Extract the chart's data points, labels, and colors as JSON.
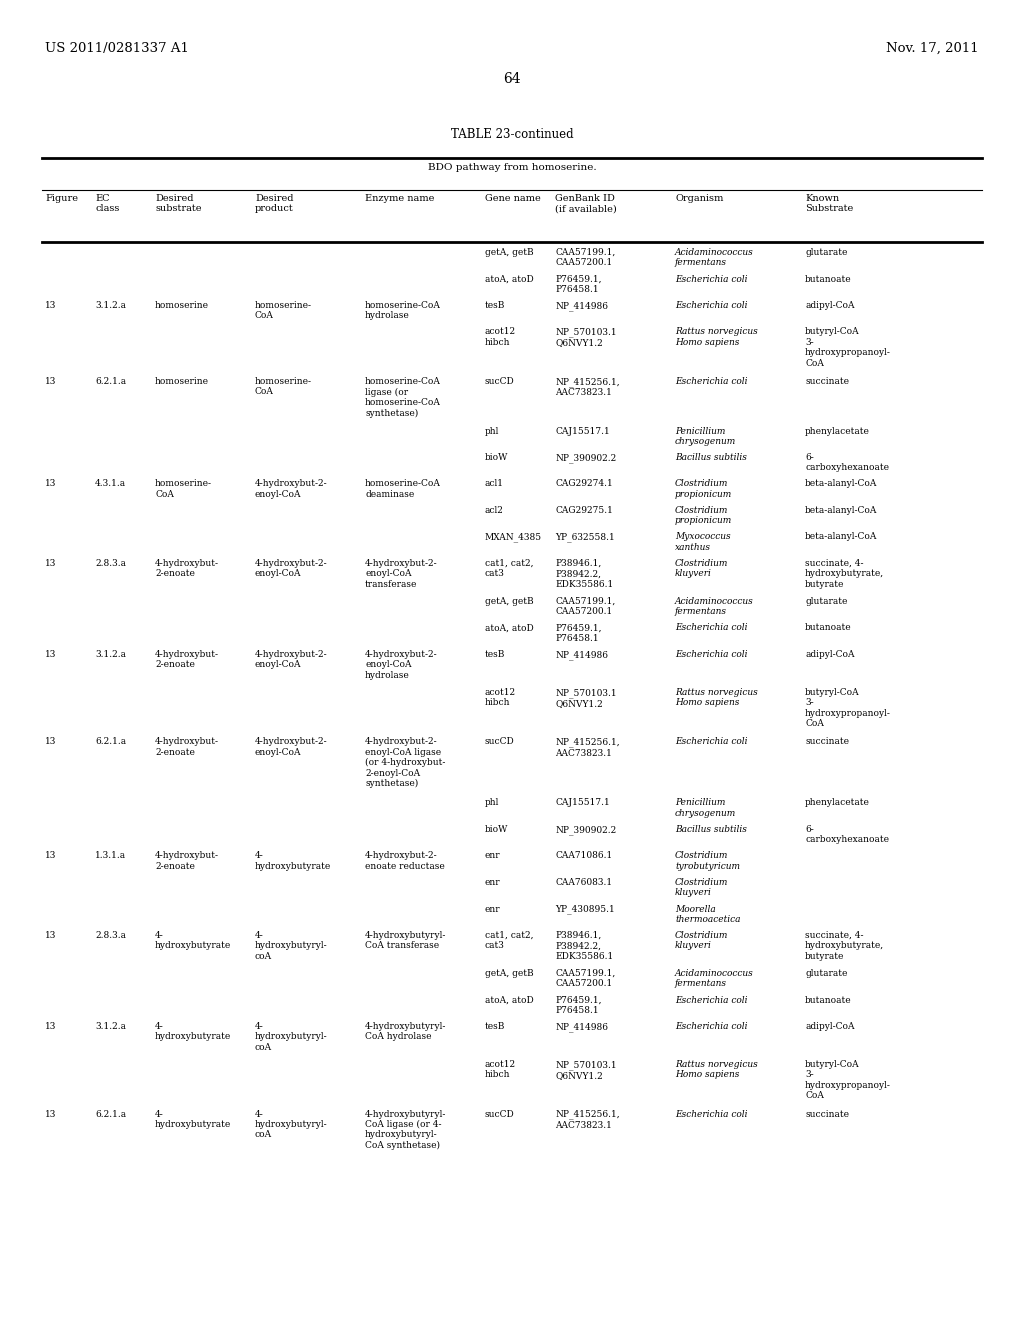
{
  "header_left": "US 2011/0281337 A1",
  "header_right": "Nov. 17, 2011",
  "page_number": "64",
  "table_title": "TABLE 23-continued",
  "table_subtitle": "BDO pathway from homoserine.",
  "col_x_inch": [
    0.45,
    0.95,
    1.55,
    2.55,
    3.65,
    4.85,
    5.55,
    6.75,
    8.05
  ],
  "col_keys": [
    "fig",
    "ec",
    "sub",
    "prod",
    "enz",
    "gene",
    "genbank",
    "org",
    "known"
  ],
  "col_headers": [
    "Figure",
    "EC\nclass",
    "Desired\nsubstrate",
    "Desired\nproduct",
    "Enzyme name",
    "Gene name",
    "GenBank ID\n(if available)",
    "Organism",
    "Known\nSubstrate"
  ],
  "background_color": "#ffffff",
  "text_color": "#000000",
  "rows": [
    {
      "fig": "",
      "ec": "",
      "sub": "",
      "prod": "",
      "enz": "",
      "gene": "getA, getB",
      "genbank": "CAA57199.1,\nCAA57200.1",
      "org": "Acidaminococcus\nfermentans",
      "known": "glutarate"
    },
    {
      "fig": "",
      "ec": "",
      "sub": "",
      "prod": "",
      "enz": "",
      "gene": "atoA, atoD",
      "genbank": "P76459.1,\nP76458.1",
      "org": "Escherichia coli",
      "known": "butanoate"
    },
    {
      "fig": "13",
      "ec": "3.1.2.a",
      "sub": "homoserine",
      "prod": "homoserine-\nCoA",
      "enz": "homoserine-CoA\nhydrolase",
      "gene": "tesB",
      "genbank": "NP_414986",
      "org": "Escherichia coli",
      "known": "adipyl-CoA"
    },
    {
      "fig": "",
      "ec": "",
      "sub": "",
      "prod": "",
      "enz": "",
      "gene": "acot12\nhibch",
      "genbank": "NP_570103.1\nQ6NVY1.2",
      "org": "Rattus norvegicus\nHomo sapiens",
      "known": "butyryl-CoA\n3-\nhydroxypropanoyl-\nCoA"
    },
    {
      "fig": "13",
      "ec": "6.2.1.a",
      "sub": "homoserine",
      "prod": "homoserine-\nCoA",
      "enz": "homoserine-CoA\nligase (or\nhomoserine-CoA\nsynthetase)",
      "gene": "sucCD",
      "genbank": "NP_415256.1,\nAAC73823.1",
      "org": "Escherichia coli",
      "known": "succinate"
    },
    {
      "fig": "",
      "ec": "",
      "sub": "",
      "prod": "",
      "enz": "",
      "gene": "phl",
      "genbank": "CAJ15517.1",
      "org": "Penicillium\nchrysogenum",
      "known": "phenylacetate"
    },
    {
      "fig": "",
      "ec": "",
      "sub": "",
      "prod": "",
      "enz": "",
      "gene": "bioW",
      "genbank": "NP_390902.2",
      "org": "Bacillus subtilis",
      "known": "6-\ncarboxyhexanoate"
    },
    {
      "fig": "13",
      "ec": "4.3.1.a",
      "sub": "homoserine-\nCoA",
      "prod": "4-hydroxybut-2-\nenoyl-CoA",
      "enz": "homoserine-CoA\ndeaminase",
      "gene": "acl1",
      "genbank": "CAG29274.1",
      "org": "Clostridium\npropionicum",
      "known": "beta-alanyl-CoA"
    },
    {
      "fig": "",
      "ec": "",
      "sub": "",
      "prod": "",
      "enz": "",
      "gene": "acl2",
      "genbank": "CAG29275.1",
      "org": "Clostridium\npropionicum",
      "known": "beta-alanyl-CoA"
    },
    {
      "fig": "",
      "ec": "",
      "sub": "",
      "prod": "",
      "enz": "",
      "gene": "MXAN_4385",
      "genbank": "YP_632558.1",
      "org": "Myxococcus\nxanthus",
      "known": "beta-alanyl-CoA"
    },
    {
      "fig": "13",
      "ec": "2.8.3.a",
      "sub": "4-hydroxybut-\n2-enoate",
      "prod": "4-hydroxybut-2-\nenoyl-CoA",
      "enz": "4-hydroxybut-2-\nenoyl-CoA\ntransferase",
      "gene": "cat1, cat2,\ncat3",
      "genbank": "P38946.1,\nP38942.2,\nEDK35586.1",
      "org": "Clostridium\nkluyveri",
      "known": "succinate, 4-\nhydroxybutyrate,\nbutyrate"
    },
    {
      "fig": "",
      "ec": "",
      "sub": "",
      "prod": "",
      "enz": "",
      "gene": "getA, getB",
      "genbank": "CAA57199.1,\nCAA57200.1",
      "org": "Acidaminococcus\nfermentans",
      "known": "glutarate"
    },
    {
      "fig": "",
      "ec": "",
      "sub": "",
      "prod": "",
      "enz": "",
      "gene": "atoA, atoD",
      "genbank": "P76459.1,\nP76458.1",
      "org": "Escherichia coli",
      "known": "butanoate"
    },
    {
      "fig": "13",
      "ec": "3.1.2.a",
      "sub": "4-hydroxybut-\n2-enoate",
      "prod": "4-hydroxybut-2-\nenoyl-CoA",
      "enz": "4-hydroxybut-2-\nenoyl-CoA\nhydrolase",
      "gene": "tesB",
      "genbank": "NP_414986",
      "org": "Escherichia coli",
      "known": "adipyl-CoA"
    },
    {
      "fig": "",
      "ec": "",
      "sub": "",
      "prod": "",
      "enz": "",
      "gene": "acot12\nhibch",
      "genbank": "NP_570103.1\nQ6NVY1.2",
      "org": "Rattus norvegicus\nHomo sapiens",
      "known": "butyryl-CoA\n3-\nhydroxypropanoyl-\nCoA"
    },
    {
      "fig": "13",
      "ec": "6.2.1.a",
      "sub": "4-hydroxybut-\n2-enoate",
      "prod": "4-hydroxybut-2-\nenoyl-CoA",
      "enz": "4-hydroxybut-2-\nenoyl-CoA ligase\n(or 4-hydroxybut-\n2-enoyl-CoA\nsynthetase)",
      "gene": "sucCD",
      "genbank": "NP_415256.1,\nAAC73823.1",
      "org": "Escherichia coli",
      "known": "succinate"
    },
    {
      "fig": "",
      "ec": "",
      "sub": "",
      "prod": "",
      "enz": "",
      "gene": "phl",
      "genbank": "CAJ15517.1",
      "org": "Penicillium\nchrysogenum",
      "known": "phenylacetate"
    },
    {
      "fig": "",
      "ec": "",
      "sub": "",
      "prod": "",
      "enz": "",
      "gene": "bioW",
      "genbank": "NP_390902.2",
      "org": "Bacillus subtilis",
      "known": "6-\ncarboxyhexanoate"
    },
    {
      "fig": "13",
      "ec": "1.3.1.a",
      "sub": "4-hydroxybut-\n2-enoate",
      "prod": "4-\nhydroxybutyrate",
      "enz": "4-hydroxybut-2-\nenoate reductase",
      "gene": "enr",
      "genbank": "CAA71086.1",
      "org": "Clostridium\ntyrobutyricum",
      "known": ""
    },
    {
      "fig": "",
      "ec": "",
      "sub": "",
      "prod": "",
      "enz": "",
      "gene": "enr",
      "genbank": "CAA76083.1",
      "org": "Clostridium\nkluyveri",
      "known": ""
    },
    {
      "fig": "",
      "ec": "",
      "sub": "",
      "prod": "",
      "enz": "",
      "gene": "enr",
      "genbank": "YP_430895.1",
      "org": "Moorella\nthermoacetica",
      "known": ""
    },
    {
      "fig": "13",
      "ec": "2.8.3.a",
      "sub": "4-\nhydroxybutyrate",
      "prod": "4-\nhydroxybutyryl-\ncoA",
      "enz": "4-hydroxybutyryl-\nCoA transferase",
      "gene": "cat1, cat2,\ncat3",
      "genbank": "P38946.1,\nP38942.2,\nEDK35586.1",
      "org": "Clostridium\nkluyveri",
      "known": "succinate, 4-\nhydroxybutyrate,\nbutyrate"
    },
    {
      "fig": "",
      "ec": "",
      "sub": "",
      "prod": "",
      "enz": "",
      "gene": "getA, getB",
      "genbank": "CAA57199.1,\nCAA57200.1",
      "org": "Acidaminococcus\nfermentans",
      "known": "glutarate"
    },
    {
      "fig": "",
      "ec": "",
      "sub": "",
      "prod": "",
      "enz": "",
      "gene": "atoA, atoD",
      "genbank": "P76459.1,\nP76458.1",
      "org": "Escherichia coli",
      "known": "butanoate"
    },
    {
      "fig": "13",
      "ec": "3.1.2.a",
      "sub": "4-\nhydroxybutyrate",
      "prod": "4-\nhydroxybutyryl-\ncoA",
      "enz": "4-hydroxybutyryl-\nCoA hydrolase",
      "gene": "tesB",
      "genbank": "NP_414986",
      "org": "Escherichia coli",
      "known": "adipyl-CoA"
    },
    {
      "fig": "",
      "ec": "",
      "sub": "",
      "prod": "",
      "enz": "",
      "gene": "acot12\nhibch",
      "genbank": "NP_570103.1\nQ6NVY1.2",
      "org": "Rattus norvegicus\nHomo sapiens",
      "known": "butyryl-CoA\n3-\nhydroxypropanoyl-\nCoA"
    },
    {
      "fig": "13",
      "ec": "6.2.1.a",
      "sub": "4-\nhydroxybutyrate",
      "prod": "4-\nhydroxybutyryl-\ncoA",
      "enz": "4-hydroxybutyryl-\nCoA ligase (or 4-\nhydroxybutyryl-\nCoA synthetase)",
      "gene": "sucCD",
      "genbank": "NP_415256.1,\nAAC73823.1",
      "org": "Escherichia coli",
      "known": "succinate"
    }
  ]
}
